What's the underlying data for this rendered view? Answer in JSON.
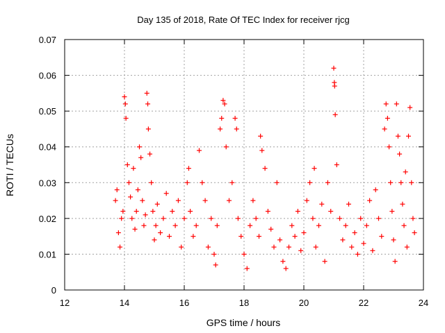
{
  "chart_data": {
    "type": "scatter",
    "title": "Day 135 of 2018, Rate Of TEC Index for receiver rjcg",
    "xlabel": "GPS time / hours",
    "ylabel": "ROTI / TECUs",
    "xlim": [
      12,
      24
    ],
    "ylim": [
      0,
      0.07
    ],
    "xticks": [
      "12",
      "14",
      "16",
      "18",
      "20",
      "22",
      "24"
    ],
    "yticks": [
      "0",
      "0.01",
      "0.02",
      "0.03",
      "0.04",
      "0.05",
      "0.06",
      "0.07"
    ],
    "grid": true,
    "marker": "+",
    "color": "#ff0000",
    "series": [
      {
        "name": "ROTI",
        "points": [
          [
            13.7,
            0.025
          ],
          [
            13.75,
            0.028
          ],
          [
            13.8,
            0.016
          ],
          [
            13.85,
            0.012
          ],
          [
            13.9,
            0.02
          ],
          [
            13.95,
            0.022
          ],
          [
            14.0,
            0.054
          ],
          [
            14.03,
            0.052
          ],
          [
            14.05,
            0.048
          ],
          [
            14.1,
            0.035
          ],
          [
            14.15,
            0.03
          ],
          [
            14.2,
            0.026
          ],
          [
            14.25,
            0.02
          ],
          [
            14.3,
            0.034
          ],
          [
            14.35,
            0.017
          ],
          [
            14.4,
            0.022
          ],
          [
            14.45,
            0.028
          ],
          [
            14.5,
            0.04
          ],
          [
            14.55,
            0.037
          ],
          [
            14.6,
            0.025
          ],
          [
            14.65,
            0.018
          ],
          [
            14.7,
            0.021
          ],
          [
            14.75,
            0.055
          ],
          [
            14.78,
            0.052
          ],
          [
            14.8,
            0.045
          ],
          [
            14.85,
            0.038
          ],
          [
            14.9,
            0.03
          ],
          [
            14.95,
            0.022
          ],
          [
            15.0,
            0.014
          ],
          [
            15.05,
            0.018
          ],
          [
            15.1,
            0.024
          ],
          [
            15.2,
            0.016
          ],
          [
            15.3,
            0.02
          ],
          [
            15.4,
            0.027
          ],
          [
            15.5,
            0.015
          ],
          [
            15.6,
            0.022
          ],
          [
            15.7,
            0.018
          ],
          [
            15.8,
            0.025
          ],
          [
            15.9,
            0.012
          ],
          [
            16.0,
            0.02
          ],
          [
            16.1,
            0.03
          ],
          [
            16.15,
            0.034
          ],
          [
            16.2,
            0.022
          ],
          [
            16.3,
            0.015
          ],
          [
            16.4,
            0.018
          ],
          [
            16.5,
            0.039
          ],
          [
            16.6,
            0.03
          ],
          [
            16.7,
            0.025
          ],
          [
            16.8,
            0.012
          ],
          [
            16.9,
            0.02
          ],
          [
            17.0,
            0.01
          ],
          [
            17.05,
            0.007
          ],
          [
            17.1,
            0.018
          ],
          [
            17.2,
            0.045
          ],
          [
            17.25,
            0.048
          ],
          [
            17.3,
            0.053
          ],
          [
            17.35,
            0.052
          ],
          [
            17.4,
            0.04
          ],
          [
            17.5,
            0.025
          ],
          [
            17.6,
            0.03
          ],
          [
            17.7,
            0.048
          ],
          [
            17.75,
            0.045
          ],
          [
            17.8,
            0.02
          ],
          [
            17.9,
            0.015
          ],
          [
            18.0,
            0.01
          ],
          [
            18.1,
            0.006
          ],
          [
            18.2,
            0.018
          ],
          [
            18.3,
            0.025
          ],
          [
            18.4,
            0.02
          ],
          [
            18.5,
            0.015
          ],
          [
            18.55,
            0.043
          ],
          [
            18.6,
            0.039
          ],
          [
            18.7,
            0.034
          ],
          [
            18.8,
            0.022
          ],
          [
            18.9,
            0.017
          ],
          [
            19.0,
            0.012
          ],
          [
            19.1,
            0.03
          ],
          [
            19.2,
            0.014
          ],
          [
            19.3,
            0.008
          ],
          [
            19.4,
            0.006
          ],
          [
            19.5,
            0.012
          ],
          [
            19.6,
            0.018
          ],
          [
            19.7,
            0.015
          ],
          [
            19.8,
            0.022
          ],
          [
            19.9,
            0.011
          ],
          [
            20.0,
            0.016
          ],
          [
            20.1,
            0.025
          ],
          [
            20.2,
            0.03
          ],
          [
            20.3,
            0.02
          ],
          [
            20.35,
            0.034
          ],
          [
            20.4,
            0.012
          ],
          [
            20.5,
            0.018
          ],
          [
            20.6,
            0.024
          ],
          [
            20.7,
            0.008
          ],
          [
            20.8,
            0.03
          ],
          [
            20.9,
            0.022
          ],
          [
            21.0,
            0.062
          ],
          [
            21.02,
            0.058
          ],
          [
            21.03,
            0.057
          ],
          [
            21.05,
            0.049
          ],
          [
            21.1,
            0.035
          ],
          [
            21.2,
            0.02
          ],
          [
            21.3,
            0.014
          ],
          [
            21.4,
            0.018
          ],
          [
            21.5,
            0.024
          ],
          [
            21.6,
            0.012
          ],
          [
            21.7,
            0.016
          ],
          [
            21.8,
            0.01
          ],
          [
            21.9,
            0.02
          ],
          [
            22.0,
            0.013
          ],
          [
            22.1,
            0.018
          ],
          [
            22.2,
            0.025
          ],
          [
            22.3,
            0.011
          ],
          [
            22.4,
            0.028
          ],
          [
            22.5,
            0.02
          ],
          [
            22.6,
            0.015
          ],
          [
            22.7,
            0.045
          ],
          [
            22.75,
            0.052
          ],
          [
            22.8,
            0.048
          ],
          [
            22.85,
            0.04
          ],
          [
            22.9,
            0.03
          ],
          [
            22.95,
            0.022
          ],
          [
            23.0,
            0.014
          ],
          [
            23.05,
            0.008
          ],
          [
            23.1,
            0.052
          ],
          [
            23.15,
            0.043
          ],
          [
            23.2,
            0.038
          ],
          [
            23.25,
            0.03
          ],
          [
            23.3,
            0.024
          ],
          [
            23.35,
            0.018
          ],
          [
            23.4,
            0.033
          ],
          [
            23.45,
            0.012
          ],
          [
            23.5,
            0.043
          ],
          [
            23.55,
            0.051
          ],
          [
            23.6,
            0.03
          ],
          [
            23.65,
            0.02
          ],
          [
            23.7,
            0.016
          ]
        ]
      }
    ]
  }
}
